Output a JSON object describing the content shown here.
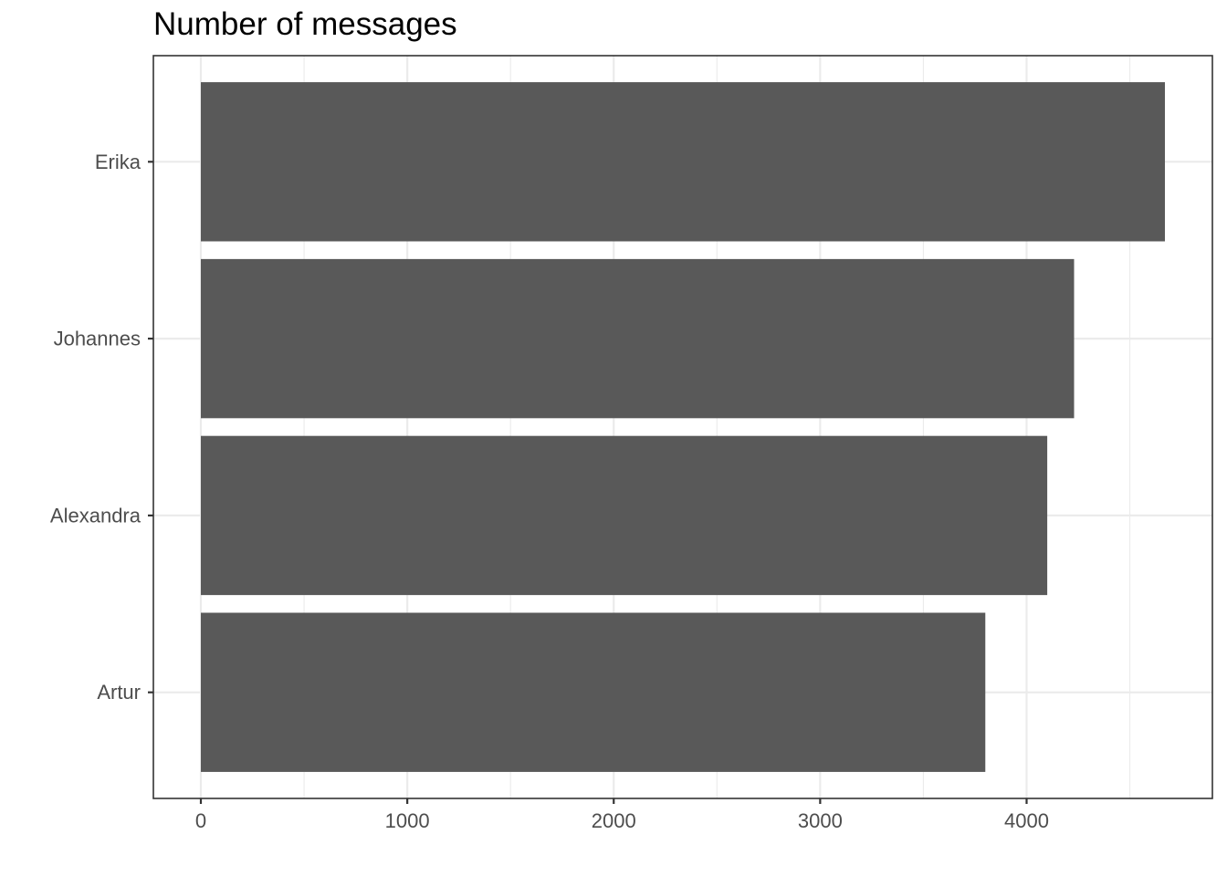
{
  "chart_data": {
    "type": "bar",
    "orientation": "horizontal",
    "title": "Number of messages",
    "xlabel": "",
    "ylabel": "",
    "categories": [
      "Erika",
      "Johannes",
      "Alexandra",
      "Artur"
    ],
    "values": [
      4670,
      4230,
      4100,
      3800
    ],
    "x_ticks": [
      0,
      1000,
      2000,
      3000,
      4000
    ],
    "x_minor_ticks": [
      500,
      1500,
      2500,
      3500,
      4500
    ],
    "xlim": [
      -230,
      4900
    ],
    "grid": true,
    "legend": "none",
    "bar_color": "#595959",
    "background_color": "#ffffff",
    "grid_color": "#ebebeb",
    "border_color": "#333333"
  }
}
